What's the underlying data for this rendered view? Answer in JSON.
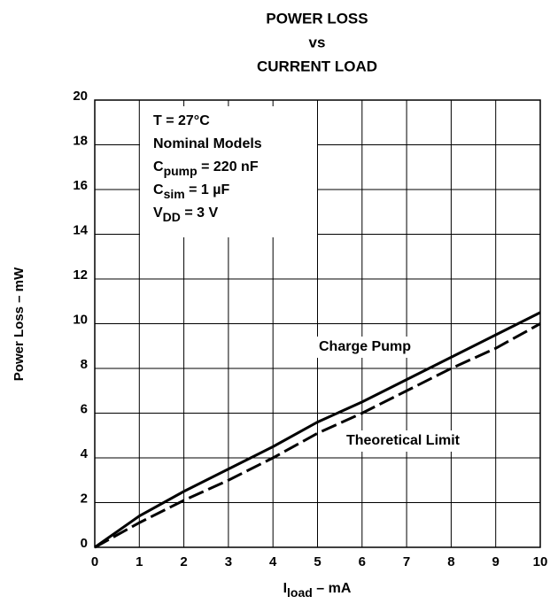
{
  "chart_data": {
    "type": "line",
    "title": [
      "POWER LOSS",
      "vs",
      "CURRENT LOAD"
    ],
    "y_label": "Power Loss – mW",
    "x_label": {
      "main": "I",
      "sub": "load",
      "rest": " – mA"
    },
    "annotation": [
      {
        "main": "T = 27°C"
      },
      {
        "main": "Nominal Models"
      },
      {
        "main": "C",
        "sub": "pump",
        "rest": " = 220 nF"
      },
      {
        "main": "C",
        "sub": "sim",
        "rest": " = 1 µF"
      },
      {
        "main": "V",
        "sub": "DD",
        "rest": " = 3 V"
      }
    ],
    "x": [
      0,
      1,
      2,
      3,
      4,
      5,
      6,
      7,
      8,
      9,
      10
    ],
    "series": [
      {
        "name": "Charge Pump",
        "color": "#000000",
        "dash": false,
        "values": [
          0,
          1.4,
          2.5,
          3.5,
          4.5,
          5.6,
          6.5,
          7.5,
          8.5,
          9.5,
          10.5
        ]
      },
      {
        "name": "Theoretical Limit",
        "color": "#000000",
        "dash": true,
        "values": [
          0,
          1.1,
          2.1,
          3.0,
          4.0,
          5.1,
          6.0,
          7.0,
          8.0,
          8.9,
          10.0
        ]
      }
    ],
    "xlim": [
      0,
      10
    ],
    "xticks": [
      0,
      1,
      2,
      3,
      4,
      5,
      6,
      7,
      8,
      9,
      10
    ],
    "ylim": [
      0,
      20
    ],
    "yticks": [
      0,
      2,
      4,
      6,
      8,
      10,
      12,
      14,
      16,
      18,
      20
    ],
    "grid": true
  }
}
